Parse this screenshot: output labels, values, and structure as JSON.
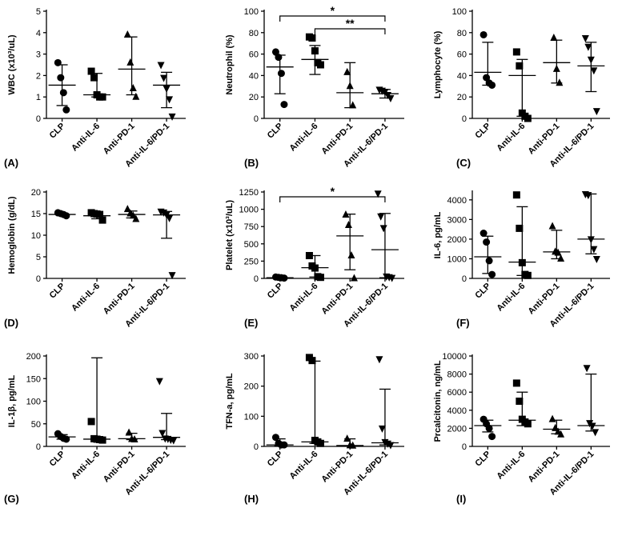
{
  "chart_data": [
    {
      "type": "dot",
      "panel": "(A)",
      "ylabel": "WBC (x10³/uL)",
      "categories": [
        "CLP",
        "Anti-IL-6",
        "Anti-PD-1",
        "Anti-IL-6/PD-1"
      ],
      "ylim": [
        0,
        5
      ],
      "yticks": [
        0,
        1,
        2,
        3,
        4,
        5
      ],
      "groups": [
        {
          "points": [
            2.6,
            1.9,
            1.2,
            0.4
          ],
          "center": 1.55,
          "low": 0.6,
          "high": 2.5
        },
        {
          "points": [
            2.2,
            1.9,
            1.1,
            1.0,
            1.0
          ],
          "center": 1.1,
          "low": 1.0,
          "high": 2.1
        },
        {
          "points": [
            3.9,
            2.6,
            1.4,
            1.0
          ],
          "center": 2.3,
          "low": 1.1,
          "high": 3.8
        },
        {
          "points": [
            2.5,
            1.9,
            1.4,
            0.9,
            0.1
          ],
          "center": 1.55,
          "low": 0.5,
          "high": 2.15
        }
      ]
    },
    {
      "type": "dot",
      "panel": "(B)",
      "ylabel": "Neutrophil (%)",
      "categories": [
        "CLP",
        "Anti-IL-6",
        "Anti-PD-1",
        "Anti-IL-6/PD-1"
      ],
      "ylim": [
        0,
        100
      ],
      "yticks": [
        0,
        20,
        40,
        60,
        80,
        100
      ],
      "groups": [
        {
          "points": [
            62,
            57,
            42,
            13
          ],
          "center": 48,
          "low": 23,
          "high": 59
        },
        {
          "points": [
            76,
            75,
            63,
            52,
            50
          ],
          "center": 55,
          "low": 41,
          "high": 68
        },
        {
          "points": [
            43,
            30,
            12
          ],
          "center": 24,
          "low": 10,
          "high": 52
        },
        {
          "points": [
            27,
            26,
            25,
            22,
            19
          ],
          "center": 23,
          "low": 19,
          "high": 27
        }
      ],
      "annotations": [
        {
          "text": "*",
          "from": "CLP",
          "to": "Anti-IL-6/PD-1"
        },
        {
          "text": "**",
          "from": "Anti-IL-6",
          "to": "Anti-IL-6/PD-1"
        }
      ]
    },
    {
      "type": "dot",
      "panel": "(C)",
      "ylabel": "Lymphocyte (%)",
      "categories": [
        "CLP",
        "Anti-IL-6",
        "Anti-PD-1",
        "Anti-IL-6/PD-1"
      ],
      "ylim": [
        0,
        100
      ],
      "yticks": [
        0,
        20,
        40,
        60,
        80,
        100
      ],
      "groups": [
        {
          "points": [
            78,
            38,
            33,
            31
          ],
          "center": 43,
          "low": 31,
          "high": 71
        },
        {
          "points": [
            62,
            49,
            5,
            2,
            0
          ],
          "center": 40,
          "low": 2,
          "high": 55
        },
        {
          "points": [
            75,
            46,
            33
          ],
          "center": 52,
          "low": 33,
          "high": 73
        },
        {
          "points": [
            75,
            67,
            55,
            45,
            7
          ],
          "center": 49,
          "low": 25,
          "high": 71
        }
      ]
    },
    {
      "type": "dot",
      "panel": "(D)",
      "ylabel": "Hemoglobin (g/dL)",
      "categories": [
        "CLP",
        "Anti-IL-6",
        "Anti-PD-1",
        "Anti-IL-6/PD-1"
      ],
      "ylim": [
        0,
        20
      ],
      "yticks": [
        0,
        5,
        10,
        15,
        20
      ],
      "groups": [
        {
          "points": [
            15.2,
            15,
            14.8,
            14.5
          ],
          "center": 14.8,
          "low": 14.5,
          "high": 15.1
        },
        {
          "points": [
            15.2,
            15,
            14.9,
            14.8,
            13.5
          ],
          "center": 14.5,
          "low": 13.8,
          "high": 15.1
        },
        {
          "points": [
            16,
            15,
            14.5,
            13.7
          ],
          "center": 14.8,
          "low": 14,
          "high": 15.6
        },
        {
          "points": [
            15.5,
            15.3,
            14.8,
            14,
            0.8
          ],
          "center": 14.7,
          "low": 9.3,
          "high": 15.5
        }
      ]
    },
    {
      "type": "dot",
      "panel": "(E)",
      "ylabel": "Platelet (x10³/uL)",
      "categories": [
        "CLP",
        "Anti-IL-6",
        "Anti-PD-1",
        "Anti-IL-6/PD-1"
      ],
      "ylim": [
        0,
        1250
      ],
      "yticks": [
        0,
        250,
        500,
        750,
        1000,
        1250
      ],
      "groups": [
        {
          "points": [
            20,
            15,
            10,
            5
          ],
          "center": 10,
          "low": 5,
          "high": 15
        },
        {
          "points": [
            330,
            180,
            150,
            25,
            15
          ],
          "center": 155,
          "low": 20,
          "high": 330
        },
        {
          "points": [
            920,
            770,
            330,
            0
          ],
          "center": 615,
          "low": 125,
          "high": 930
        },
        {
          "points": [
            1230,
            900,
            730,
            30,
            20,
            10
          ],
          "center": 415,
          "low": 10,
          "high": 940
        }
      ],
      "annotations": [
        {
          "text": "*",
          "from": "CLP",
          "to": "Anti-IL-6/PD-1"
        }
      ]
    },
    {
      "type": "dot",
      "panel": "(F)",
      "ylabel": "IL-6, pg/mL",
      "categories": [
        "CLP",
        "Anti-IL-6",
        "Anti-PD-1",
        "Anti-IL-6/PD-1"
      ],
      "ylim": [
        0,
        4400
      ],
      "yticks": [
        0,
        1000,
        2000,
        3000,
        4000
      ],
      "groups": [
        {
          "points": [
            2300,
            1850,
            900,
            200
          ],
          "center": 1100,
          "low": 250,
          "high": 2150
        },
        {
          "points": [
            4250,
            2550,
            800,
            200,
            150
          ],
          "center": 830,
          "low": 150,
          "high": 3650
        },
        {
          "points": [
            2650,
            1350,
            1300,
            1000
          ],
          "center": 1350,
          "low": 1000,
          "high": 2450
        },
        {
          "points": [
            4300,
            4250,
            2000,
            1500,
            1000
          ],
          "center": 2000,
          "low": 1250,
          "high": 4300
        }
      ]
    },
    {
      "type": "dot",
      "panel": "(G)",
      "ylabel": "IL-1β, pg/mL",
      "categories": [
        "CLP",
        "Anti-IL-6",
        "Anti-PD-1",
        "Anti-IL-6/PD-1"
      ],
      "ylim": [
        0,
        200
      ],
      "yticks": [
        0,
        50,
        100,
        150,
        200
      ],
      "groups": [
        {
          "points": [
            28,
            22,
            18,
            16
          ],
          "center": 21,
          "low": 16,
          "high": 26
        },
        {
          "points": [
            55,
            17,
            16,
            15,
            14
          ],
          "center": 16,
          "low": 14,
          "high": 196
        },
        {
          "points": [
            30,
            16,
            15
          ],
          "center": 17,
          "low": 15,
          "high": 29
        },
        {
          "points": [
            145,
            30,
            18,
            17,
            15,
            14
          ],
          "center": 20,
          "low": 15,
          "high": 73
        }
      ]
    },
    {
      "type": "dot",
      "panel": "(H)",
      "ylabel": "TFN-a, pg/mL",
      "categories": [
        "CLP",
        "Anti-IL-6",
        "Anti-PD-1",
        "Anti-IL-6/PD-1"
      ],
      "ylim": [
        0,
        300
      ],
      "yticks": [
        0,
        100,
        200,
        300
      ],
      "groups": [
        {
          "points": [
            30,
            10,
            5,
            5
          ],
          "center": 5,
          "low": 2,
          "high": 25
        },
        {
          "points": [
            295,
            285,
            20,
            15,
            10
          ],
          "center": 15,
          "low": 10,
          "high": 283
        },
        {
          "points": [
            25,
            3,
            2
          ],
          "center": 3,
          "low": 2,
          "high": 25
        },
        {
          "points": [
            290,
            60,
            15,
            10,
            5
          ],
          "center": 12,
          "low": 5,
          "high": 190
        }
      ]
    },
    {
      "type": "dot",
      "panel": "(I)",
      "ylabel": "Prcalcitonin, ng/mL",
      "categories": [
        "CLP",
        "Anti-IL-6",
        "Anti-PD-1",
        "Anti-IL-6/PD-1"
      ],
      "ylim": [
        0,
        10000
      ],
      "yticks": [
        0,
        2000,
        4000,
        6000,
        8000,
        10000
      ],
      "groups": [
        {
          "points": [
            3000,
            2500,
            2000,
            1100
          ],
          "center": 2300,
          "low": 1600,
          "high": 2900
        },
        {
          "points": [
            7000,
            5000,
            3000,
            2700,
            2500
          ],
          "center": 2900,
          "low": 2300,
          "high": 6000
        },
        {
          "points": [
            3000,
            2000,
            1600,
            1300
          ],
          "center": 1900,
          "low": 1400,
          "high": 2900
        },
        {
          "points": [
            8700,
            2600,
            2300,
            1600
          ],
          "center": 2300,
          "low": 1700,
          "high": 8000
        }
      ]
    }
  ],
  "marker_shapes": [
    "circle",
    "square",
    "triangle",
    "down-triangle"
  ],
  "color": "#000000"
}
